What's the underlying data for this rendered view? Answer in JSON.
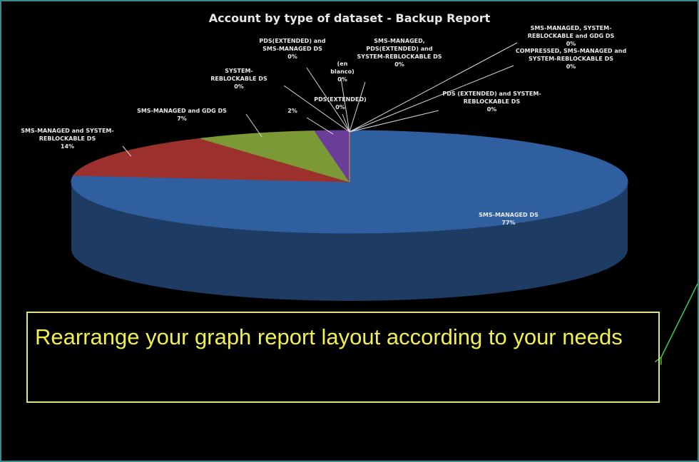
{
  "chart_data": {
    "type": "pie",
    "title": "Account by type of dataset - Backup Report",
    "categories": [
      "SMS-MANAGED DS",
      "SMS-MANAGED and SYSTEM-REBLOCKABLE DS",
      "SMS-MANAGED and GDG DS",
      null,
      "SYSTEM-REBLOCKABLE DS",
      "PDS(EXTENDED) and SMS-MANAGED DS",
      "(en blanco)",
      "PDS(EXTENDED)",
      "SMS-MANAGED, PDS(EXTENDED) and SYSTEM-REBLOCKABLE DS",
      "SMS-MANAGED, SYSTEM-REBLOCKABLE and GDG DS",
      "COMPRESSED, SMS-MANAGED and SYSTEM-REBLOCKABLE DS",
      "PDS (EXTENDED) and SYSTEM-REBLOCKABLE DS"
    ],
    "values": [
      77,
      14,
      7,
      2,
      0,
      0,
      0,
      0,
      0,
      0,
      0,
      0
    ],
    "value_labels": [
      "77%",
      "14%",
      "7%",
      "2%",
      "0%",
      "0%",
      "0%",
      "0%",
      "0%",
      "0%",
      "0%",
      "0%"
    ],
    "colors": [
      "#2f5f9f",
      "#9c302d",
      "#7b9a35",
      "#6a3e98",
      "#2f8fa8",
      "#d57a2a",
      "#4a73b0",
      "#b04a47",
      "#8aa84a",
      "#7a5aa8",
      "#3aa0b8",
      "#e08f40"
    ],
    "annotation": "Rearrange your graph report layout according to your needs"
  }
}
